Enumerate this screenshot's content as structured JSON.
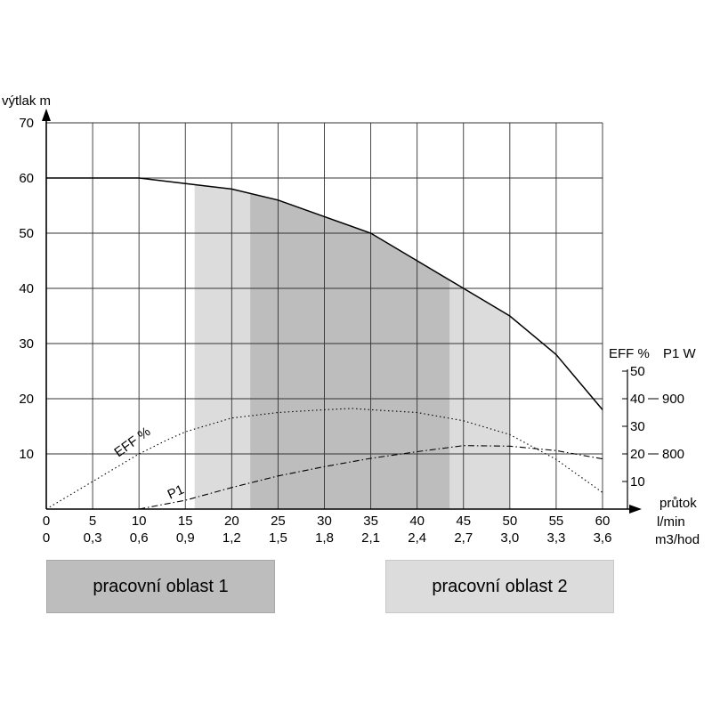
{
  "chart_data": {
    "type": "line",
    "ylabel": "výtlak  m",
    "xlabels": [
      "průtok",
      "l/min",
      "m3/hod"
    ],
    "x_ticks_lmin": [
      "0",
      "5",
      "10",
      "15",
      "20",
      "25",
      "30",
      "35",
      "40",
      "45",
      "50",
      "55",
      "60"
    ],
    "x_ticks_m3h": [
      "0",
      "0,3",
      "0,6",
      "0,9",
      "1,2",
      "1,5",
      "1,8",
      "2,1",
      "2,4",
      "2,7",
      "3,0",
      "3,3",
      "3,6"
    ],
    "y_ticks": [
      "10",
      "20",
      "30",
      "40",
      "50",
      "60",
      "70"
    ],
    "xlim": [
      0,
      60
    ],
    "ylim": [
      0,
      70
    ],
    "grid": true,
    "right_axis": {
      "title_eff": "EFF %",
      "title_p1": "P1 W",
      "eff_ticks": [
        "10",
        "20",
        "30",
        "40",
        "50"
      ],
      "p1_ticks": [
        "800",
        "900"
      ],
      "eff_range": [
        0,
        50
      ],
      "p1_range_at_eff_20_40": [
        800,
        900
      ]
    },
    "series": [
      {
        "name": "výtlak",
        "style": "solid",
        "x": [
          0,
          10,
          15,
          20,
          25,
          30,
          35,
          40,
          45,
          50,
          55,
          60
        ],
        "y": [
          60,
          60,
          59,
          58,
          56,
          53,
          50,
          45,
          40,
          35,
          28,
          18
        ]
      },
      {
        "name": "EFF %",
        "style": "dotted",
        "x": [
          0,
          5,
          10,
          13,
          15,
          20,
          25,
          30,
          33,
          35,
          40,
          45,
          50,
          55,
          60
        ],
        "eff_pct": [
          0,
          10,
          20,
          25,
          28,
          33,
          35,
          36,
          36.5,
          36,
          35,
          32,
          27,
          18,
          6
        ]
      },
      {
        "name": "P1",
        "style": "dashdot",
        "x": [
          10,
          15,
          20,
          25,
          30,
          35,
          40,
          45,
          50,
          55,
          60
        ],
        "p1_w": [
          700,
          716,
          739,
          760,
          777,
          792,
          804,
          815,
          814,
          806,
          791
        ]
      }
    ],
    "zones": [
      {
        "name": "pracovní oblast 1",
        "x_range": [
          22,
          43.5
        ],
        "color": "#bdbdbd"
      },
      {
        "name": "pracovní oblast 2",
        "x_range": [
          16,
          50
        ],
        "color": "#dcdcdc"
      }
    ],
    "annotations": {
      "eff_label": "EFF %",
      "p1_label": "P1"
    }
  },
  "legend": {
    "zone1": "pracovní oblast 1",
    "zone2": "pracovní oblast 2"
  }
}
